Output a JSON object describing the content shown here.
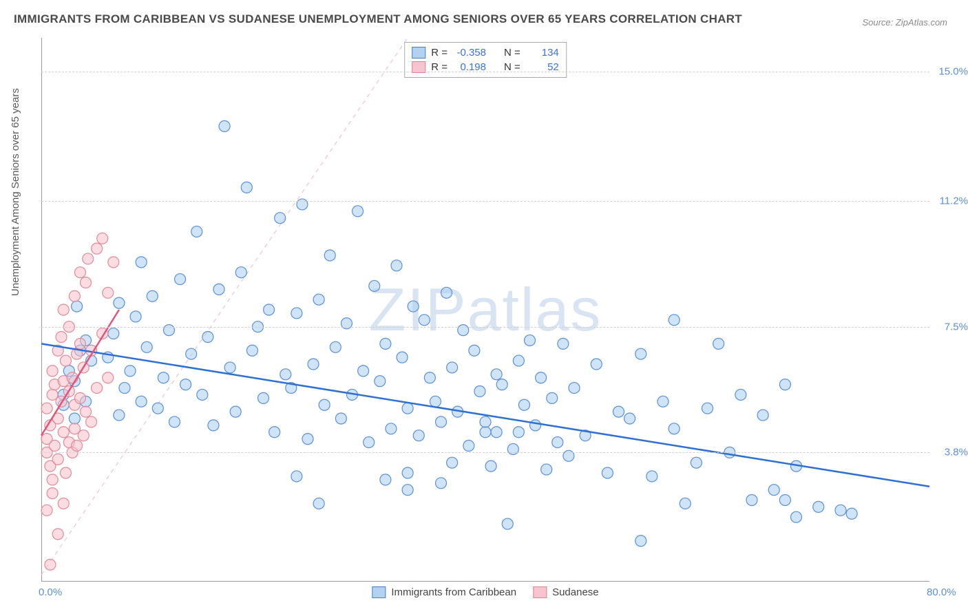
{
  "title": "IMMIGRANTS FROM CARIBBEAN VS SUDANESE UNEMPLOYMENT AMONG SENIORS OVER 65 YEARS CORRELATION CHART",
  "source": "Source: ZipAtlas.com",
  "y_axis_label": "Unemployment Among Seniors over 65 years",
  "watermark": "ZIPatlas",
  "chart": {
    "type": "scatter",
    "background_color": "#ffffff",
    "grid_color": "#d0d0d0",
    "xlim": [
      0,
      80
    ],
    "ylim": [
      0,
      16
    ],
    "x_ticks": [
      {
        "v": 0,
        "label": "0.0%"
      },
      {
        "v": 80,
        "label": "80.0%"
      }
    ],
    "y_ticks": [
      {
        "v": 3.8,
        "label": "3.8%"
      },
      {
        "v": 7.5,
        "label": "7.5%"
      },
      {
        "v": 11.2,
        "label": "11.2%"
      },
      {
        "v": 15,
        "label": "15.0%"
      }
    ],
    "marker_radius": 8,
    "marker_opacity": 0.55,
    "series": [
      {
        "name": "Immigrants from Caribbean",
        "fill_color": "#a9cdf0",
        "stroke_color": "#5b8fd9",
        "trend": {
          "x1": 0,
          "y1": 7.0,
          "x2": 80,
          "y2": 2.8,
          "color": "#2e6fd6",
          "width": 2.5,
          "dash": "none"
        },
        "guide": {
          "x1": 0,
          "y1": 0.2,
          "x2": 33,
          "y2": 16,
          "color": "#f1b8c2",
          "width": 1,
          "dash": "6,6"
        },
        "points": [
          [
            2,
            5.2
          ],
          [
            2,
            5.5
          ],
          [
            2.5,
            6.2
          ],
          [
            3,
            4.8
          ],
          [
            3,
            5.9
          ],
          [
            3.2,
            8.1
          ],
          [
            3.5,
            6.8
          ],
          [
            4,
            7.1
          ],
          [
            4,
            5.3
          ],
          [
            4.5,
            6.5
          ],
          [
            9,
            9.4
          ],
          [
            6,
            6.6
          ],
          [
            6.5,
            7.3
          ],
          [
            7,
            8.2
          ],
          [
            7,
            4.9
          ],
          [
            7.5,
            5.7
          ],
          [
            8,
            6.2
          ],
          [
            8.5,
            7.8
          ],
          [
            9,
            5.3
          ],
          [
            9.5,
            6.9
          ],
          [
            10,
            8.4
          ],
          [
            10.5,
            5.1
          ],
          [
            11,
            6.0
          ],
          [
            11.5,
            7.4
          ],
          [
            12,
            4.7
          ],
          [
            12.5,
            8.9
          ],
          [
            13,
            5.8
          ],
          [
            13.5,
            6.7
          ],
          [
            14,
            10.3
          ],
          [
            14.5,
            5.5
          ],
          [
            15,
            7.2
          ],
          [
            15.5,
            4.6
          ],
          [
            16,
            8.6
          ],
          [
            16.5,
            13.4
          ],
          [
            17,
            6.3
          ],
          [
            17.5,
            5.0
          ],
          [
            18,
            9.1
          ],
          [
            18.5,
            11.6
          ],
          [
            19,
            6.8
          ],
          [
            19.5,
            7.5
          ],
          [
            20,
            5.4
          ],
          [
            20.5,
            8.0
          ],
          [
            21,
            4.4
          ],
          [
            21.5,
            10.7
          ],
          [
            22,
            6.1
          ],
          [
            22.5,
            5.7
          ],
          [
            23,
            7.9
          ],
          [
            23.5,
            11.1
          ],
          [
            24,
            4.2
          ],
          [
            24.5,
            6.4
          ],
          [
            25,
            8.3
          ],
          [
            25.5,
            5.2
          ],
          [
            26,
            9.6
          ],
          [
            26.5,
            6.9
          ],
          [
            27,
            4.8
          ],
          [
            27.5,
            7.6
          ],
          [
            28,
            5.5
          ],
          [
            28.5,
            10.9
          ],
          [
            29,
            6.2
          ],
          [
            29.5,
            4.1
          ],
          [
            30,
            8.7
          ],
          [
            30.5,
            5.9
          ],
          [
            31,
            7.0
          ],
          [
            31.5,
            4.5
          ],
          [
            32,
            9.3
          ],
          [
            32.5,
            6.6
          ],
          [
            33,
            5.1
          ],
          [
            33.5,
            8.1
          ],
          [
            34,
            4.3
          ],
          [
            34.5,
            7.7
          ],
          [
            35,
            6.0
          ],
          [
            35.5,
            5.3
          ],
          [
            36,
            4.7
          ],
          [
            36.5,
            8.5
          ],
          [
            37,
            6.3
          ],
          [
            37.5,
            5.0
          ],
          [
            38,
            7.4
          ],
          [
            38.5,
            4.0
          ],
          [
            39,
            6.8
          ],
          [
            39.5,
            5.6
          ],
          [
            40,
            4.4
          ],
          [
            40.5,
            3.4
          ],
          [
            41,
            6.1
          ],
          [
            41.5,
            5.8
          ],
          [
            42,
            1.7
          ],
          [
            42.5,
            3.9
          ],
          [
            43,
            6.5
          ],
          [
            43.5,
            5.2
          ],
          [
            44,
            7.1
          ],
          [
            44.5,
            4.6
          ],
          [
            45,
            6.0
          ],
          [
            45.5,
            3.3
          ],
          [
            46,
            5.4
          ],
          [
            46.5,
            4.1
          ],
          [
            47,
            7.0
          ],
          [
            47.5,
            3.7
          ],
          [
            48,
            5.7
          ],
          [
            49,
            4.3
          ],
          [
            50,
            6.4
          ],
          [
            51,
            3.2
          ],
          [
            52,
            5.0
          ],
          [
            53,
            4.8
          ],
          [
            54,
            6.7
          ],
          [
            54,
            1.2
          ],
          [
            55,
            3.1
          ],
          [
            56,
            5.3
          ],
          [
            57,
            4.5
          ],
          [
            58,
            2.3
          ],
          [
            57,
            7.7
          ],
          [
            59,
            3.5
          ],
          [
            60,
            5.1
          ],
          [
            61,
            7.0
          ],
          [
            62,
            3.8
          ],
          [
            63,
            5.5
          ],
          [
            64,
            2.4
          ],
          [
            65,
            4.9
          ],
          [
            66,
            2.7
          ],
          [
            67,
            5.8
          ],
          [
            67,
            2.4
          ],
          [
            68,
            3.4
          ],
          [
            68,
            1.9
          ],
          [
            70,
            2.2
          ],
          [
            72,
            2.1
          ],
          [
            73,
            2.0
          ],
          [
            25,
            2.3
          ],
          [
            23,
            3.1
          ],
          [
            31,
            3.0
          ],
          [
            33,
            3.2
          ],
          [
            37,
            3.5
          ],
          [
            41,
            4.4
          ],
          [
            43,
            4.4
          ],
          [
            40,
            4.7
          ],
          [
            36,
            2.9
          ],
          [
            33,
            2.7
          ]
        ]
      },
      {
        "name": "Sudanese",
        "fill_color": "#f5c0cb",
        "stroke_color": "#e28a9a",
        "trend": {
          "x1": 0,
          "y1": 4.3,
          "x2": 7,
          "y2": 8.0,
          "color": "#e25578",
          "width": 2.5,
          "dash": "none"
        },
        "points": [
          [
            0.5,
            3.8
          ],
          [
            0.5,
            4.2
          ],
          [
            0.5,
            5.1
          ],
          [
            0.8,
            3.4
          ],
          [
            0.8,
            4.6
          ],
          [
            1,
            5.5
          ],
          [
            1,
            6.2
          ],
          [
            1,
            3.0
          ],
          [
            1.2,
            4.0
          ],
          [
            1.2,
            5.8
          ],
          [
            1.5,
            6.8
          ],
          [
            1.5,
            3.6
          ],
          [
            1.5,
            4.8
          ],
          [
            1.8,
            5.3
          ],
          [
            1.8,
            7.2
          ],
          [
            2,
            4.4
          ],
          [
            2,
            5.9
          ],
          [
            2,
            8.0
          ],
          [
            2.2,
            3.2
          ],
          [
            2.2,
            6.5
          ],
          [
            2.5,
            4.1
          ],
          [
            2.5,
            5.6
          ],
          [
            2.5,
            7.5
          ],
          [
            2.8,
            3.8
          ],
          [
            2.8,
            6.0
          ],
          [
            3,
            4.5
          ],
          [
            3,
            8.4
          ],
          [
            3,
            5.2
          ],
          [
            3.2,
            6.7
          ],
          [
            3.2,
            4.0
          ],
          [
            3.5,
            9.1
          ],
          [
            3.5,
            5.4
          ],
          [
            3.5,
            7.0
          ],
          [
            3.8,
            4.3
          ],
          [
            3.8,
            6.3
          ],
          [
            4,
            8.8
          ],
          [
            4,
            5.0
          ],
          [
            4.2,
            9.5
          ],
          [
            4.5,
            6.8
          ],
          [
            4.5,
            4.7
          ],
          [
            5,
            9.8
          ],
          [
            5,
            5.7
          ],
          [
            5.5,
            7.3
          ],
          [
            5.5,
            10.1
          ],
          [
            6,
            6.0
          ],
          [
            6,
            8.5
          ],
          [
            6.5,
            9.4
          ],
          [
            0.5,
            2.1
          ],
          [
            1,
            2.6
          ],
          [
            1.5,
            1.4
          ],
          [
            0.8,
            0.5
          ],
          [
            2,
            2.3
          ]
        ]
      }
    ]
  },
  "legend_stats": [
    {
      "swatch": "blue",
      "r_label": "R =",
      "r": "-0.358",
      "n_label": "N =",
      "n": "134"
    },
    {
      "swatch": "pink",
      "r_label": "R =",
      "r": "0.198",
      "n_label": "N =",
      "n": "52"
    }
  ],
  "bottom_legend": [
    {
      "swatch": "blue",
      "label": "Immigrants from Caribbean"
    },
    {
      "swatch": "pink",
      "label": "Sudanese"
    }
  ]
}
